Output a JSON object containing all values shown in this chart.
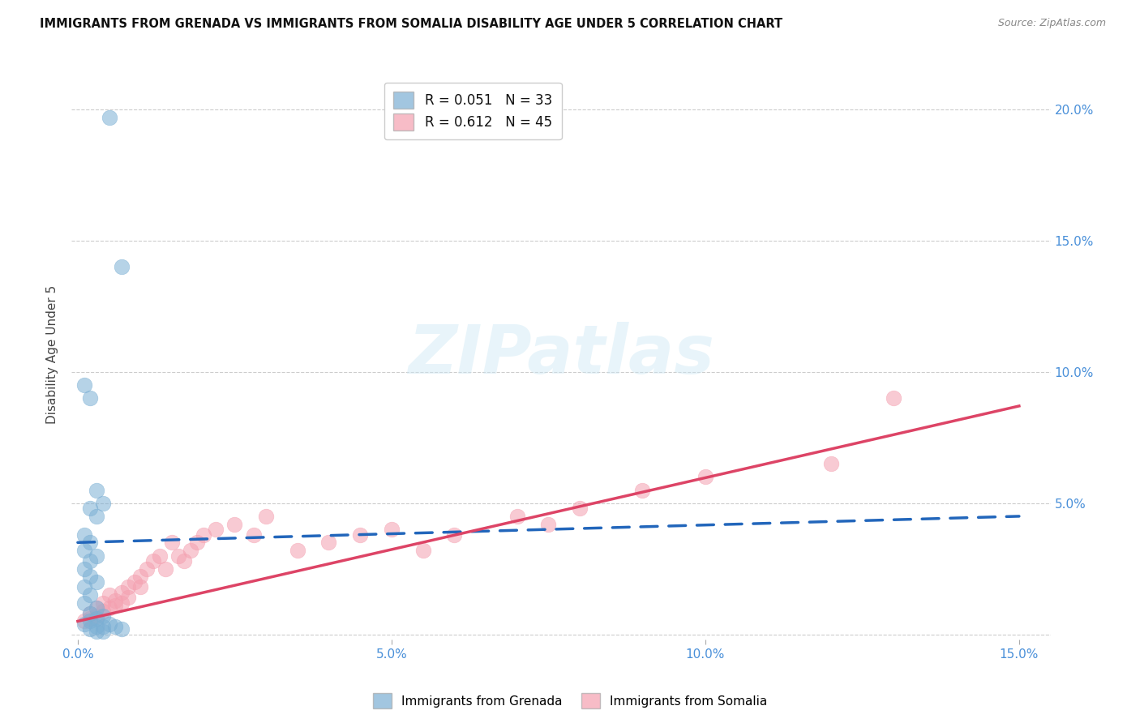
{
  "title": "IMMIGRANTS FROM GRENADA VS IMMIGRANTS FROM SOMALIA DISABILITY AGE UNDER 5 CORRELATION CHART",
  "source": "Source: ZipAtlas.com",
  "tick_color": "#4a90d9",
  "ylabel": "Disability Age Under 5",
  "xlim": [
    -0.001,
    0.155
  ],
  "ylim": [
    -0.002,
    0.215
  ],
  "x_ticks": [
    0.0,
    0.05,
    0.1,
    0.15
  ],
  "x_tick_labels": [
    "0.0%",
    "5.0%",
    "10.0%",
    "15.0%"
  ],
  "y_ticks": [
    0.0,
    0.05,
    0.1,
    0.15,
    0.2
  ],
  "y_tick_labels": [
    "",
    "5.0%",
    "10.0%",
    "15.0%",
    "20.0%"
  ],
  "grenada_R": 0.051,
  "grenada_N": 33,
  "somalia_R": 0.612,
  "somalia_N": 45,
  "grenada_color": "#7bafd4",
  "somalia_color": "#f4a0b0",
  "grenada_line_color": "#2266bb",
  "somalia_line_color": "#dd4466",
  "watermark_text": "ZIPatlas",
  "legend_label_grenada": "Immigrants from Grenada",
  "legend_label_somalia": "Immigrants from Somalia",
  "grenada_x": [
    0.005,
    0.007,
    0.001,
    0.002,
    0.003,
    0.004,
    0.002,
    0.003,
    0.001,
    0.002,
    0.001,
    0.003,
    0.002,
    0.001,
    0.002,
    0.003,
    0.001,
    0.002,
    0.001,
    0.003,
    0.002,
    0.004,
    0.003,
    0.002,
    0.001,
    0.003,
    0.004,
    0.005,
    0.006,
    0.007,
    0.002,
    0.003,
    0.004
  ],
  "grenada_y": [
    0.197,
    0.14,
    0.095,
    0.09,
    0.055,
    0.05,
    0.048,
    0.045,
    0.038,
    0.035,
    0.032,
    0.03,
    0.028,
    0.025,
    0.022,
    0.02,
    0.018,
    0.015,
    0.012,
    0.01,
    0.008,
    0.007,
    0.006,
    0.005,
    0.004,
    0.003,
    0.003,
    0.004,
    0.003,
    0.002,
    0.002,
    0.001,
    0.001
  ],
  "somalia_x": [
    0.001,
    0.002,
    0.002,
    0.003,
    0.003,
    0.004,
    0.004,
    0.005,
    0.005,
    0.006,
    0.006,
    0.007,
    0.007,
    0.008,
    0.008,
    0.009,
    0.01,
    0.01,
    0.011,
    0.012,
    0.013,
    0.014,
    0.015,
    0.016,
    0.017,
    0.018,
    0.019,
    0.02,
    0.022,
    0.025,
    0.028,
    0.03,
    0.035,
    0.04,
    0.045,
    0.05,
    0.055,
    0.06,
    0.07,
    0.075,
    0.08,
    0.09,
    0.1,
    0.12,
    0.13
  ],
  "somalia_y": [
    0.005,
    0.008,
    0.006,
    0.01,
    0.007,
    0.012,
    0.009,
    0.015,
    0.01,
    0.013,
    0.011,
    0.016,
    0.012,
    0.018,
    0.014,
    0.02,
    0.022,
    0.018,
    0.025,
    0.028,
    0.03,
    0.025,
    0.035,
    0.03,
    0.028,
    0.032,
    0.035,
    0.038,
    0.04,
    0.042,
    0.038,
    0.045,
    0.032,
    0.035,
    0.038,
    0.04,
    0.032,
    0.038,
    0.045,
    0.042,
    0.048,
    0.055,
    0.06,
    0.065,
    0.09
  ]
}
